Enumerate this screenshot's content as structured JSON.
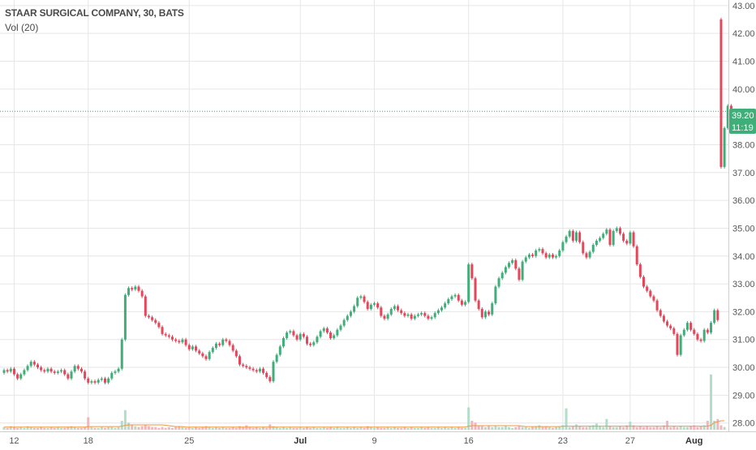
{
  "header": {
    "symbol_line": "STAAR SURGICAL COMPANY, 30, BATS",
    "volume_label": "Vol (20)"
  },
  "price_badge": {
    "price": "39.20",
    "countdown": "11:19"
  },
  "colors": {
    "up": "#3fae79",
    "down": "#e5465a",
    "vol_up": "#b2ddc9",
    "vol_down": "#f4b5bb",
    "vol_ma": "#f0973f",
    "grid": "#e6e6e6",
    "price_line": "#26a69a",
    "badge": "#3fae79"
  },
  "chart_data": {
    "type": "candlestick",
    "title": "STAAR SURGICAL COMPANY, 30, BATS",
    "interval": "30",
    "exchange": "BATS",
    "y_axis": {
      "position": "right",
      "ylim": [
        27.7,
        43.2
      ],
      "ticks": [
        "28.00",
        "29.00",
        "30.00",
        "31.00",
        "32.00",
        "33.00",
        "34.00",
        "35.00",
        "36.00",
        "37.00",
        "38.00",
        "39.00",
        "40.00",
        "41.00",
        "42.00",
        "43.00"
      ]
    },
    "x_axis": {
      "ticks": [
        {
          "label": "12",
          "index": 3,
          "bold": false
        },
        {
          "label": "18",
          "index": 25,
          "bold": false
        },
        {
          "label": "25",
          "index": 55,
          "bold": false
        },
        {
          "label": "Jul",
          "index": 88,
          "bold": true
        },
        {
          "label": "9",
          "index": 110,
          "bold": false
        },
        {
          "label": "16",
          "index": 138,
          "bold": false
        },
        {
          "label": "23",
          "index": 166,
          "bold": false
        },
        {
          "label": "27",
          "index": 186,
          "bold": false
        },
        {
          "label": "Aug",
          "index": 205,
          "bold": true
        }
      ]
    },
    "grid": true,
    "last_price": 39.2,
    "current_line_price": 39.2,
    "closes": [
      29.9,
      29.85,
      29.95,
      29.75,
      29.6,
      29.75,
      29.9,
      30.05,
      30.2,
      30.1,
      30.0,
      29.9,
      29.85,
      29.95,
      29.85,
      29.8,
      29.85,
      29.9,
      29.75,
      29.6,
      29.85,
      30.05,
      29.95,
      29.85,
      29.6,
      29.45,
      29.5,
      29.45,
      29.55,
      29.6,
      29.45,
      29.6,
      29.8,
      29.85,
      29.95,
      31.0,
      32.6,
      32.85,
      32.8,
      32.9,
      32.75,
      32.55,
      31.85,
      31.8,
      31.7,
      31.6,
      31.45,
      31.2,
      31.15,
      31.1,
      31.0,
      30.95,
      30.9,
      31.0,
      30.8,
      30.65,
      30.75,
      30.6,
      30.5,
      30.4,
      30.3,
      30.55,
      30.7,
      30.85,
      30.8,
      31.0,
      30.95,
      30.8,
      30.6,
      30.4,
      30.1,
      30.05,
      30.0,
      29.95,
      29.9,
      29.85,
      29.95,
      29.8,
      29.65,
      29.5,
      30.2,
      30.45,
      30.75,
      31.05,
      31.25,
      31.3,
      31.15,
      31.0,
      31.2,
      31.1,
      30.85,
      30.8,
      30.9,
      31.1,
      31.3,
      31.4,
      31.25,
      31.05,
      31.15,
      31.35,
      31.5,
      31.7,
      31.85,
      32.0,
      32.2,
      32.5,
      32.55,
      32.35,
      32.1,
      32.25,
      32.3,
      32.15,
      31.85,
      31.75,
      31.9,
      32.1,
      32.2,
      32.05,
      31.95,
      31.85,
      31.9,
      31.75,
      31.85,
      31.9,
      31.95,
      31.85,
      31.75,
      31.8,
      31.95,
      32.05,
      32.15,
      32.3,
      32.45,
      32.55,
      32.6,
      32.4,
      32.25,
      32.35,
      33.7,
      33.2,
      32.4,
      32.1,
      31.8,
      32.0,
      31.9,
      32.3,
      32.9,
      33.2,
      33.4,
      33.6,
      33.75,
      33.85,
      33.55,
      33.15,
      33.8,
      33.95,
      34.05,
      34.0,
      34.2,
      34.25,
      34.1,
      33.95,
      34.05,
      33.95,
      34.0,
      34.2,
      34.5,
      34.7,
      34.9,
      34.55,
      34.85,
      34.5,
      34.1,
      33.95,
      34.15,
      34.4,
      34.55,
      34.65,
      34.8,
      34.95,
      34.4,
      34.9,
      35.0,
      34.8,
      34.55,
      34.45,
      34.85,
      34.35,
      33.7,
      33.25,
      32.9,
      32.75,
      32.55,
      32.4,
      32.05,
      31.85,
      31.65,
      31.5,
      31.4,
      31.2,
      30.45,
      31.15,
      31.35,
      31.6,
      31.35,
      31.2,
      31.0,
      30.95,
      31.35,
      31.25,
      31.6,
      32.05,
      31.7,
      37.2,
      38.6,
      39.4,
      38.8,
      39.2
    ],
    "opens": [
      29.8,
      29.9,
      29.85,
      29.95,
      29.75,
      29.6,
      29.75,
      29.9,
      30.05,
      30.2,
      30.1,
      30.0,
      29.9,
      29.85,
      29.95,
      29.85,
      29.8,
      29.85,
      29.9,
      29.75,
      29.6,
      29.85,
      30.05,
      29.95,
      29.85,
      29.6,
      29.45,
      29.5,
      29.45,
      29.55,
      29.6,
      29.45,
      29.6,
      29.8,
      29.85,
      29.95,
      31.0,
      32.6,
      32.85,
      32.8,
      32.9,
      32.75,
      32.55,
      31.85,
      31.8,
      31.7,
      31.6,
      31.45,
      31.2,
      31.15,
      31.1,
      31.0,
      30.95,
      30.9,
      31.0,
      30.8,
      30.65,
      30.75,
      30.6,
      30.5,
      30.4,
      30.3,
      30.55,
      30.7,
      30.85,
      30.8,
      31.0,
      30.95,
      30.8,
      30.6,
      30.4,
      30.1,
      30.05,
      30.0,
      29.95,
      29.9,
      29.85,
      29.95,
      29.8,
      29.65,
      29.5,
      30.2,
      30.45,
      30.75,
      31.05,
      31.25,
      31.3,
      31.15,
      31.0,
      31.2,
      31.1,
      30.85,
      30.8,
      30.9,
      31.1,
      31.3,
      31.4,
      31.25,
      31.05,
      31.15,
      31.35,
      31.5,
      31.7,
      31.85,
      32.0,
      32.2,
      32.5,
      32.55,
      32.35,
      32.1,
      32.25,
      32.3,
      32.15,
      31.85,
      31.75,
      31.9,
      32.1,
      32.2,
      32.05,
      31.95,
      31.85,
      31.9,
      31.75,
      31.85,
      31.9,
      31.95,
      31.85,
      31.75,
      31.8,
      31.95,
      32.05,
      32.15,
      32.3,
      32.45,
      32.55,
      32.6,
      32.4,
      32.25,
      32.35,
      33.7,
      33.2,
      32.4,
      32.1,
      31.8,
      32.0,
      31.9,
      32.3,
      32.9,
      33.2,
      33.4,
      33.6,
      33.75,
      33.85,
      33.55,
      33.15,
      33.8,
      33.95,
      34.05,
      34.0,
      34.2,
      34.25,
      34.1,
      33.95,
      34.05,
      33.95,
      34.0,
      34.2,
      34.5,
      34.7,
      34.9,
      34.55,
      34.85,
      34.5,
      34.1,
      33.95,
      34.15,
      34.4,
      34.55,
      34.65,
      34.8,
      34.95,
      34.4,
      34.9,
      35.0,
      34.8,
      34.55,
      34.45,
      34.85,
      34.35,
      33.7,
      33.25,
      32.9,
      32.75,
      32.55,
      32.4,
      32.05,
      31.85,
      31.65,
      31.5,
      31.4,
      31.2,
      30.45,
      31.15,
      31.35,
      31.6,
      31.35,
      31.2,
      31.0,
      30.95,
      31.35,
      31.25,
      31.6,
      32.05,
      42.5,
      37.2,
      38.6,
      39.4,
      38.8
    ],
    "volume_ylim": [
      0,
      100
    ],
    "volumes": [
      3,
      2,
      4,
      3,
      2,
      3,
      2,
      4,
      3,
      2,
      2,
      3,
      2,
      2,
      3,
      2,
      3,
      2,
      2,
      3,
      4,
      3,
      2,
      2,
      3,
      14,
      3,
      2,
      2,
      3,
      2,
      3,
      3,
      2,
      3,
      10,
      22,
      8,
      5,
      4,
      3,
      4,
      5,
      4,
      3,
      3,
      2,
      3,
      2,
      3,
      2,
      3,
      4,
      3,
      2,
      3,
      2,
      3,
      2,
      3,
      4,
      3,
      2,
      3,
      2,
      3,
      2,
      2,
      3,
      2,
      4,
      3,
      5,
      3,
      2,
      3,
      2,
      3,
      2,
      6,
      4,
      3,
      2,
      3,
      2,
      3,
      2,
      2,
      3,
      2,
      3,
      2,
      3,
      2,
      2,
      3,
      2,
      3,
      2,
      3,
      2,
      2,
      3,
      2,
      3,
      2,
      3,
      2,
      4,
      3,
      2,
      3,
      2,
      2,
      3,
      2,
      3,
      2,
      2,
      3,
      2,
      3,
      2,
      2,
      3,
      2,
      3,
      2,
      2,
      3,
      2,
      3,
      2,
      3,
      2,
      3,
      2,
      2,
      25,
      10,
      8,
      5,
      4,
      3,
      4,
      3,
      4,
      3,
      3,
      4,
      3,
      2,
      3,
      4,
      3,
      3,
      2,
      3,
      4,
      5,
      3,
      4,
      3,
      2,
      3,
      4,
      5,
      24,
      3,
      4,
      6,
      4,
      3,
      3,
      4,
      5,
      7,
      4,
      3,
      12,
      4,
      3,
      3,
      4,
      3,
      5,
      9,
      5,
      3,
      4,
      3,
      4,
      3,
      3,
      4,
      3,
      5,
      10,
      3,
      4,
      3,
      4,
      3,
      3,
      4,
      5,
      3,
      4,
      5,
      10,
      62,
      10,
      12,
      5,
      3
    ],
    "volume_ma": [
      3,
      3,
      3,
      3,
      3,
      3,
      3,
      3,
      3,
      3,
      3,
      3,
      3,
      3,
      3,
      3,
      3,
      3,
      3,
      3,
      3,
      3,
      3,
      3,
      3,
      3.5,
      3.5,
      3.5,
      3.5,
      3.5,
      3.5,
      3.5,
      3.5,
      3.5,
      3.5,
      4,
      5,
      5.5,
      5.5,
      5.5,
      5.5,
      5.5,
      5.5,
      5.5,
      5.5,
      5.5,
      5.5,
      5.5,
      5,
      4.5,
      4,
      3.5,
      3.5,
      3.5,
      3,
      3,
      3,
      3,
      3,
      3,
      3,
      3,
      3,
      3,
      3,
      3,
      3,
      3,
      3,
      3,
      3,
      3,
      3,
      3,
      3,
      3,
      3,
      3,
      3,
      3,
      3,
      3,
      3,
      3,
      3,
      3,
      3,
      3,
      3,
      3,
      3,
      3,
      3,
      3,
      3,
      3,
      3,
      3,
      3,
      3,
      3,
      3,
      3,
      3,
      3,
      3,
      3,
      3,
      3,
      3,
      3,
      3,
      3,
      3,
      3,
      3,
      3,
      3,
      3,
      3,
      3,
      3,
      3,
      3,
      3,
      3,
      3,
      3,
      3,
      3,
      3,
      3,
      3,
      3,
      3,
      3,
      3,
      3,
      4,
      4.5,
      4.5,
      4.5,
      4.5,
      4.5,
      4.5,
      4.5,
      4.5,
      4.5,
      4.5,
      4.5,
      4.5,
      4.5,
      4.5,
      4.5,
      4,
      3.5,
      3.5,
      3.5,
      3.5,
      3.5,
      3.5,
      3.5,
      3.5,
      3.5,
      3.5,
      3.5,
      4,
      4,
      4,
      4,
      4,
      4,
      4,
      4,
      4,
      4,
      4,
      4,
      4,
      4,
      4,
      4,
      4,
      4,
      4,
      4,
      4,
      4,
      4,
      4,
      4,
      4,
      4,
      4,
      4,
      4,
      4,
      4,
      4,
      4,
      4,
      4,
      4,
      4,
      4,
      4,
      4,
      4,
      4,
      4,
      5,
      8,
      9,
      10,
      10
    ]
  }
}
